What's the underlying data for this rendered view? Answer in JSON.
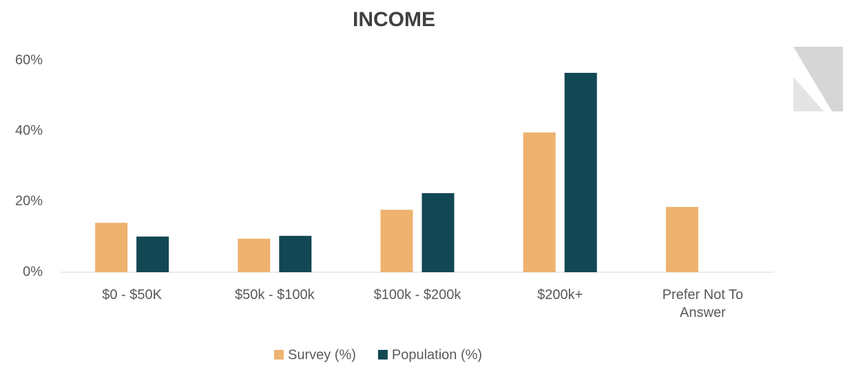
{
  "chart_data": {
    "type": "bar",
    "title": "INCOME",
    "categories": [
      "$0 - $50K",
      "$50k - $100k",
      "$100k - $200k",
      "$200k+",
      "Prefer Not To Answer"
    ],
    "series": [
      {
        "name": "Survey (%)",
        "color": "#eeb26f",
        "values": [
          14,
          9.5,
          17.7,
          39.6,
          18.5
        ]
      },
      {
        "name": "Population (%)",
        "color": "#124754",
        "values": [
          10.1,
          10.3,
          22.4,
          56.5,
          null
        ]
      }
    ],
    "ylim": [
      0,
      60
    ],
    "yticks": [
      {
        "value": 0,
        "label": "0%"
      },
      {
        "value": 20,
        "label": "20%"
      },
      {
        "value": 40,
        "label": "40%"
      },
      {
        "value": 60,
        "label": "60%"
      }
    ],
    "grid": false,
    "legend": "bottom"
  }
}
